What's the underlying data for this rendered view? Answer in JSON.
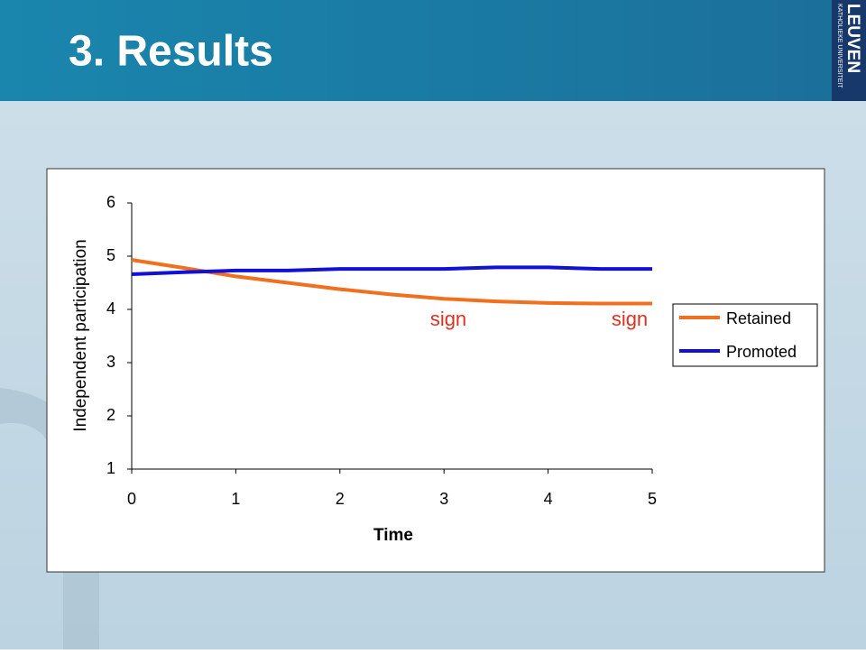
{
  "slide": {
    "title": "3. Results",
    "logo_top": "KATHOLIEKE UNIVERSITEIT",
    "logo_main": "LEUVEN"
  },
  "chart_data": {
    "type": "line",
    "xlabel": "Time",
    "ylabel": "Independent participation",
    "x": [
      0,
      0.5,
      1,
      1.5,
      2,
      2.5,
      3,
      3.5,
      4,
      4.5,
      5
    ],
    "series": [
      {
        "name": "Retained",
        "color": "#f07020",
        "values": [
          4.93,
          4.78,
          4.62,
          4.5,
          4.38,
          4.28,
          4.2,
          4.15,
          4.12,
          4.11,
          4.11
        ]
      },
      {
        "name": "Promoted",
        "color": "#1010d8",
        "values": [
          4.66,
          4.7,
          4.73,
          4.73,
          4.76,
          4.76,
          4.76,
          4.79,
          4.79,
          4.76,
          4.76
        ]
      }
    ],
    "annotations": [
      "sign",
      "sign"
    ],
    "xlim": [
      0,
      5
    ],
    "xticks": [
      0,
      1,
      2,
      3,
      4,
      5
    ],
    "ylim": [
      1,
      6
    ],
    "yticks": [
      1,
      2,
      3,
      4,
      5,
      6
    ],
    "legend": "right"
  }
}
